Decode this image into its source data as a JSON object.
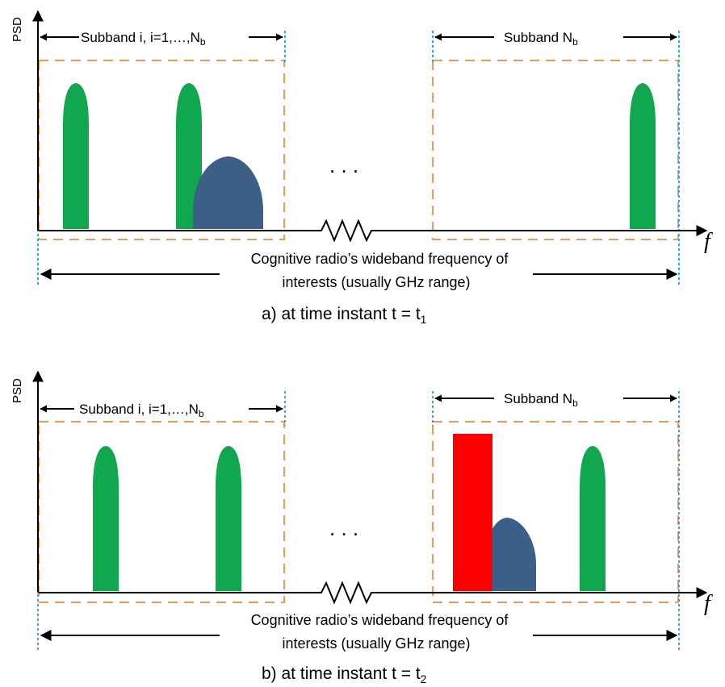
{
  "colors": {
    "signal_green": "#10a84e",
    "interferer_blue": "#3b5f86",
    "interferer_red": "#ff0000",
    "subband_box": "#ee9955",
    "band_edge": "#2aa8d8"
  },
  "icons": {
    "resistor_break": "zigzag-icon",
    "continuation": "ellipsis-icon"
  },
  "panels": [
    {
      "y_axis_label": "PSD",
      "x_axis_label": "f",
      "subband_first": {
        "label": "Subband i, i=1,…,N",
        "sub": "b"
      },
      "subband_last": {
        "label": "Subband  N",
        "sub": "b"
      },
      "ellipsis": ". . .",
      "wideband_line1": "Cognitive radio’s wideband frequency of",
      "wideband_line2": "interests  (usually GHz range)",
      "caption_main": "a) at time instant t = t",
      "caption_sub": "1"
    },
    {
      "y_axis_label": "PSD",
      "x_axis_label": "f",
      "subband_first": {
        "label": "Subband i, i=1,…,N",
        "sub": "b"
      },
      "subband_last": {
        "label": "Subband  N",
        "sub": "b"
      },
      "ellipsis": ". . .",
      "wideband_line1": "Cognitive radio’s wideband frequency of",
      "wideband_line2": "interests  (usually GHz range)",
      "caption_main": "b) at time instant t = t",
      "caption_sub": "2"
    }
  ]
}
